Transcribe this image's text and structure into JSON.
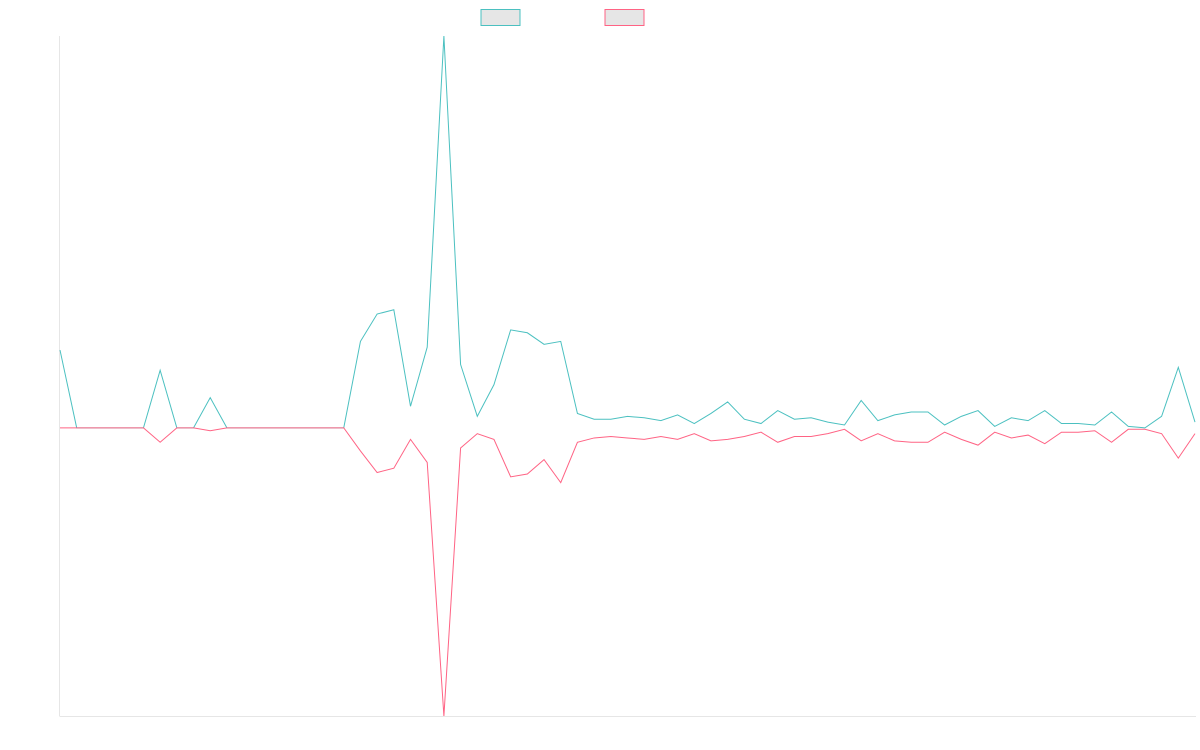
{
  "chart_data": {
    "type": "line",
    "title": "",
    "xlabel": "",
    "ylabel": "",
    "grid": false,
    "legend_position": "top-center",
    "ylim": [
      -1.0,
      1.36
    ],
    "series": [
      {
        "name": "",
        "color": "#4bc0c0",
        "fill": "#e6e6e6",
        "values": [
          0.27,
          0,
          0,
          0,
          0,
          0,
          0.2,
          0,
          0,
          0.105,
          0,
          0,
          0,
          0,
          0,
          0,
          0,
          0,
          0.3,
          0.395,
          0.41,
          0.075,
          0.28,
          1.36,
          0.22,
          0.04,
          0.15,
          0.34,
          0.33,
          0.29,
          0.3,
          0.05,
          0.03,
          0.03,
          0.04,
          0.035,
          0.025,
          0.045,
          0.015,
          0.05,
          0.09,
          0.03,
          0.015,
          0.06,
          0.03,
          0.035,
          0.02,
          0.01,
          0.095,
          0.025,
          0.045,
          0.055,
          0.055,
          0.01,
          0.04,
          0.06,
          0.005,
          0.035,
          0.025,
          0.06,
          0.015,
          0.015,
          0.01,
          0.055,
          0.005,
          0,
          0.04,
          0.21,
          0.02
        ]
      },
      {
        "name": "",
        "color": "#ff6384",
        "fill": "#e6e6e6",
        "values": [
          0,
          0,
          0,
          0,
          0,
          0,
          -0.05,
          0,
          0,
          -0.01,
          0,
          0,
          0,
          0,
          0,
          0,
          0,
          0,
          -0.08,
          -0.155,
          -0.14,
          -0.04,
          -0.12,
          -1.0,
          -0.07,
          -0.02,
          -0.04,
          -0.17,
          -0.16,
          -0.11,
          -0.19,
          -0.05,
          -0.035,
          -0.03,
          -0.035,
          -0.04,
          -0.03,
          -0.04,
          -0.02,
          -0.045,
          -0.04,
          -0.03,
          -0.015,
          -0.05,
          -0.03,
          -0.03,
          -0.02,
          -0.005,
          -0.045,
          -0.02,
          -0.045,
          -0.05,
          -0.05,
          -0.015,
          -0.04,
          -0.06,
          -0.015,
          -0.035,
          -0.025,
          -0.055,
          -0.015,
          -0.015,
          -0.01,
          -0.05,
          -0.005,
          -0.005,
          -0.02,
          -0.105,
          -0.02
        ]
      }
    ]
  }
}
